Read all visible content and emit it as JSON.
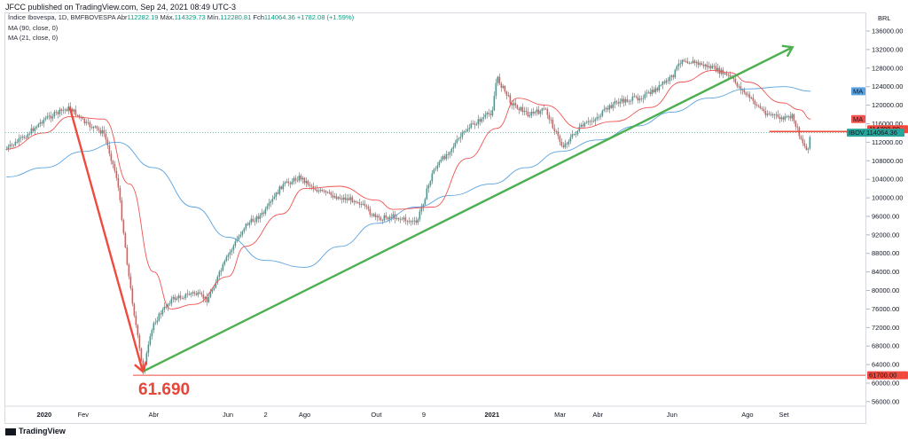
{
  "header": {
    "published_by": "JFCC published on TradingView.com, Sep 24, 2021 08:49 UTC-3"
  },
  "legend": {
    "symbol": "Índice Ibovespa, 1D, BMFBOVESPA",
    "open_label": "Abr",
    "open_value": "112282.19",
    "high_label": "Máx.",
    "high_value": "114329.73",
    "low_label": "Mín.",
    "low_value": "112280.81",
    "close_label": "Fch",
    "close_value": "114064.36",
    "change": "+1782.08 (+1.59%)",
    "ma1": "MA (90, close, 0)",
    "ma2": "MA (21, close, 0)"
  },
  "footer": {
    "brand": "TradingView"
  },
  "colors": {
    "up": "#26a69a",
    "down": "#ef5350",
    "ma90": "#5aa3e0",
    "ma21": "#ef5350",
    "trend": "#4caf50",
    "arrow": "#ef4a3d",
    "ibov_badge": "#26a69a",
    "red_badge": "#ef4a3d"
  },
  "chart_data": {
    "type": "line",
    "title": "Índice Ibovespa, 1D, BMFBOVESPA",
    "currency": "BRL",
    "ylim": [
      54000,
      140000
    ],
    "y_ticks": [
      56000,
      60000,
      64000,
      68000,
      72000,
      76000,
      80000,
      84000,
      88000,
      92000,
      96000,
      100000,
      104000,
      108000,
      112000,
      116000,
      120000,
      124000,
      128000,
      132000,
      136000
    ],
    "x_ticks": [
      "2020",
      "Fev",
      "Abr",
      "Jun",
      "2",
      "Ago",
      "Out",
      "9",
      "2021",
      "Mar",
      "Abr",
      "Jun",
      "Ago",
      "Set"
    ],
    "x_tick_dates": [
      "2020-01-02",
      "2020-02-03",
      "2020-04-01",
      "2020-06-01",
      "2020-07-02",
      "2020-08-03",
      "2020-10-01",
      "2020-11-09",
      "2021-01-04",
      "2021-03-01",
      "2021-04-01",
      "2021-06-01",
      "2021-08-02",
      "2021-09-01"
    ],
    "series": [
      {
        "name": "IBOV",
        "x": [
          "2019-12-02",
          "2019-12-16",
          "2020-01-02",
          "2020-01-23",
          "2020-02-05",
          "2020-02-20",
          "2020-03-02",
          "2020-03-12",
          "2020-03-23",
          "2020-04-01",
          "2020-04-15",
          "2020-05-04",
          "2020-05-15",
          "2020-06-01",
          "2020-06-15",
          "2020-07-01",
          "2020-07-15",
          "2020-07-30",
          "2020-08-14",
          "2020-09-01",
          "2020-09-15",
          "2020-10-01",
          "2020-10-15",
          "2020-11-03",
          "2020-11-17",
          "2020-12-01",
          "2020-12-15",
          "2021-01-04",
          "2021-01-08",
          "2021-01-20",
          "2021-02-03",
          "2021-02-17",
          "2021-03-03",
          "2021-03-17",
          "2021-04-01",
          "2021-04-15",
          "2021-05-03",
          "2021-05-14",
          "2021-06-01",
          "2021-06-09",
          "2021-06-22",
          "2021-07-05",
          "2021-07-19",
          "2021-08-02",
          "2021-08-16",
          "2021-08-31",
          "2021-09-08",
          "2021-09-14",
          "2021-09-20",
          "2021-09-23"
        ],
        "values": [
          110500,
          113000,
          117000,
          119500,
          116000,
          114000,
          104000,
          82000,
          62500,
          73000,
          78000,
          79500,
          78000,
          87500,
          94000,
          96800,
          102500,
          104500,
          101500,
          100000,
          99500,
          95500,
          96000,
          94500,
          106000,
          110500,
          115000,
          118500,
          126000,
          120500,
          118000,
          119000,
          111000,
          115000,
          117500,
          120500,
          121500,
          122500,
          126000,
          130000,
          129000,
          128000,
          126000,
          122000,
          118500,
          117000,
          117500,
          113500,
          110000,
          114064
        ]
      },
      {
        "name": "MA (21, close, 0)",
        "x": [
          "2019-12-02",
          "2020-01-02",
          "2020-01-23",
          "2020-02-20",
          "2020-03-12",
          "2020-04-01",
          "2020-04-15",
          "2020-05-04",
          "2020-06-01",
          "2020-06-15",
          "2020-07-15",
          "2020-08-03",
          "2020-08-31",
          "2020-10-01",
          "2020-10-15",
          "2020-11-17",
          "2020-12-15",
          "2021-01-08",
          "2021-01-25",
          "2021-02-17",
          "2021-03-17",
          "2021-04-15",
          "2021-05-14",
          "2021-06-09",
          "2021-07-05",
          "2021-07-19",
          "2021-08-02",
          "2021-08-31",
          "2021-09-14",
          "2021-09-23"
        ],
        "values": [
          110500,
          114000,
          117500,
          117000,
          103000,
          84000,
          76000,
          77000,
          83000,
          89500,
          96500,
          102000,
          102500,
          99500,
          97500,
          98000,
          108500,
          115000,
          121500,
          120000,
          115000,
          116500,
          119500,
          125000,
          127500,
          127000,
          125000,
          120500,
          119000,
          117000
        ]
      },
      {
        "name": "MA (90, close, 0)",
        "x": [
          "2019-12-02",
          "2020-01-02",
          "2020-02-03",
          "2020-03-02",
          "2020-04-01",
          "2020-05-04",
          "2020-06-01",
          "2020-07-01",
          "2020-08-03",
          "2020-09-01",
          "2020-10-01",
          "2020-11-03",
          "2020-12-01",
          "2021-01-04",
          "2021-02-01",
          "2021-03-01",
          "2021-04-01",
          "2021-05-03",
          "2021-06-01",
          "2021-07-01",
          "2021-08-02",
          "2021-09-01",
          "2021-09-23"
        ],
        "values": [
          104500,
          106500,
          110000,
          112000,
          106500,
          98000,
          91500,
          86500,
          85000,
          89500,
          94500,
          98000,
          100500,
          103000,
          106500,
          110000,
          112500,
          115500,
          118500,
          121500,
          123500,
          124000,
          123000
        ]
      }
    ],
    "annotations": {
      "drop_label": "61.690",
      "down_arrow": {
        "from": [
          "2020-01-23",
          119500
        ],
        "to": [
          "2020-03-23",
          62500
        ]
      },
      "trendline": {
        "from": [
          "2020-03-23",
          62500
        ],
        "to": [
          "2021-09-08",
          132500
        ]
      },
      "support_line": 61700,
      "resistance_segment": {
        "from": "2021-08-20",
        "to": "2021-09-23",
        "value": 114300
      }
    },
    "price_badges": [
      {
        "label": "MA",
        "value": null,
        "price": 123000,
        "color": "ma90"
      },
      {
        "label": "MA",
        "value": null,
        "price": 117000,
        "color": "ma21"
      },
      {
        "label": null,
        "value": "114799.99",
        "price": 114800,
        "color": "red_badge"
      },
      {
        "label": "IBOV",
        "value": "114064.36",
        "price": 114064,
        "color": "ibov_badge"
      },
      {
        "label": null,
        "value": "61700.00",
        "price": 61700,
        "color": "red_badge"
      }
    ]
  }
}
